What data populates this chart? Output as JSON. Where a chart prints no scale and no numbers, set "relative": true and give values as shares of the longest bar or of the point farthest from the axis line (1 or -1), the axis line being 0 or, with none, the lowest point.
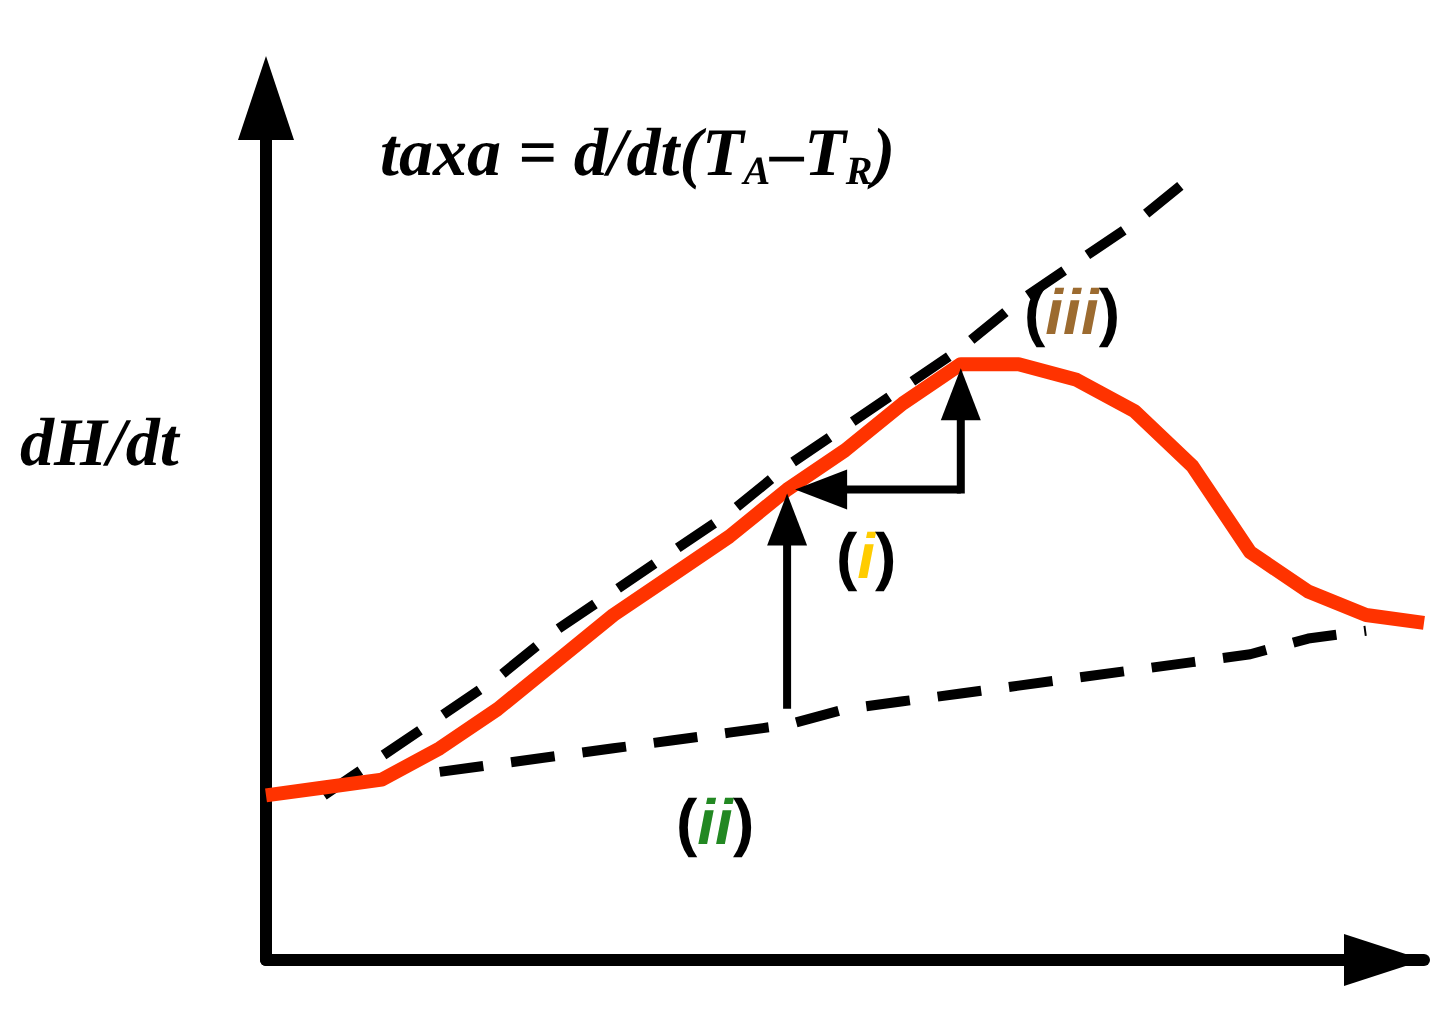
{
  "chart_data": {
    "type": "line",
    "relative": true,
    "title": "taxa = d/dt(T$_{A}$–T$_{R}$)",
    "ylabel": "dH/dt",
    "marker": "none",
    "annotations": [
      "(i)",
      "(ii)",
      "(iii)"
    ],
    "categories": [
      null,
      null,
      null,
      null,
      null,
      null,
      null,
      null,
      null,
      null,
      null,
      null,
      null,
      null,
      null,
      null,
      null,
      null,
      null,
      null,
      null
    ],
    "series": [
      {
        "color": "#ff3300",
        "line_style": "solid",
        "values": [
          0.21,
          0.22,
          0.23,
          0.27,
          0.32,
          0.38,
          0.44,
          0.49,
          0.54,
          0.6,
          0.65,
          0.71,
          0.76,
          0.76,
          0.74,
          0.7,
          0.63,
          0.52,
          0.47,
          0.44,
          0.43
        ]
      },
      {
        "color": "#000000",
        "line_style": "dashed",
        "values": [
          null,
          0.21,
          0.26,
          0.31,
          0.36,
          0.42,
          0.47,
          0.52,
          0.57,
          0.63,
          0.68,
          0.73,
          0.78,
          0.84,
          0.89,
          0.94,
          1.0,
          null,
          null,
          null,
          null
        ]
      },
      {
        "color": "#000000",
        "line_style": "dashed",
        "values": [
          null,
          null,
          null,
          0.24,
          0.25,
          0.26,
          0.27,
          0.28,
          0.29,
          0.3,
          0.32,
          0.33,
          0.34,
          0.35,
          0.36,
          0.37,
          0.38,
          0.39,
          0.41,
          0.42,
          null
        ]
      }
    ]
  }
}
